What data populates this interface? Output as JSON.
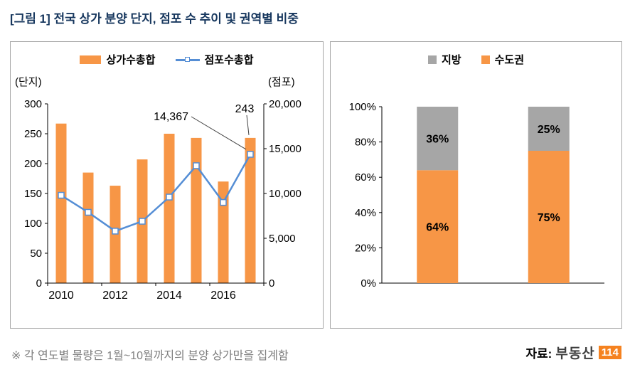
{
  "page": {
    "title": "[그림 1] 전국 상가 분양 단지, 점포 수 추이 및 권역별 비중",
    "footnote": "※ 각 연도별 물량은 1월~10월까지의 분양 상가만을 집계함",
    "source_label": "자료:",
    "source_logo_text": "부동산",
    "source_logo_badge": "114"
  },
  "colors": {
    "bar_orange": "#F79646",
    "line_blue": "#558ED5",
    "gray": "#A6A6A6",
    "title_blue": "#17375E",
    "axis_black": "#000000",
    "annotation_gray": "#404040",
    "badge_orange": "#F58220"
  },
  "chart_data": [
    {
      "type": "bar",
      "subtype": "bar+line combo, dual axis",
      "legend": [
        "상가수총합",
        "점포수총합"
      ],
      "left_axis_label": "(단지)",
      "right_axis_label": "(점포)",
      "x": [
        2010,
        2011,
        2012,
        2013,
        2014,
        2015,
        2016,
        2017
      ],
      "x_tick_labels": [
        "2010",
        "2012",
        "2014",
        "2016"
      ],
      "bar_series": {
        "name": "상가수총합",
        "values": [
          267,
          185,
          163,
          207,
          250,
          243,
          170,
          243
        ],
        "color": "#F79646"
      },
      "line_series": {
        "name": "점포수총합",
        "values": [
          9800,
          7900,
          5800,
          6900,
          9600,
          13100,
          9000,
          14367
        ],
        "color": "#558ED5"
      },
      "left_ylim": [
        0,
        300
      ],
      "left_ticks": [
        0,
        50,
        100,
        150,
        200,
        250,
        300
      ],
      "right_ylim": [
        0,
        20000
      ],
      "right_tick_labels": [
        "0",
        "5,000",
        "10,000",
        "15,000",
        "20,000"
      ],
      "grid": false,
      "legend_position": "top",
      "annotations": [
        {
          "text": "14,367",
          "target": "line-2017"
        },
        {
          "text": "243",
          "target": "bar-2017"
        }
      ]
    },
    {
      "type": "bar",
      "subtype": "100% stacked column",
      "legend": [
        {
          "label": "지방",
          "color": "#A6A6A6"
        },
        {
          "label": "수도권",
          "color": "#F79646"
        }
      ],
      "categories": [
        "",
        ""
      ],
      "series": [
        {
          "name": "수도권",
          "values": [
            64,
            75
          ],
          "color": "#F79646"
        },
        {
          "name": "지방",
          "values": [
            36,
            25
          ],
          "color": "#A6A6A6"
        }
      ],
      "y_tick_labels": [
        "0%",
        "20%",
        "40%",
        "60%",
        "80%",
        "100%"
      ],
      "ylim": [
        0,
        100
      ],
      "bar_labels": [
        [
          "64%",
          "36%"
        ],
        [
          "75%",
          "25%"
        ]
      ],
      "grid": false,
      "legend_position": "top"
    }
  ]
}
